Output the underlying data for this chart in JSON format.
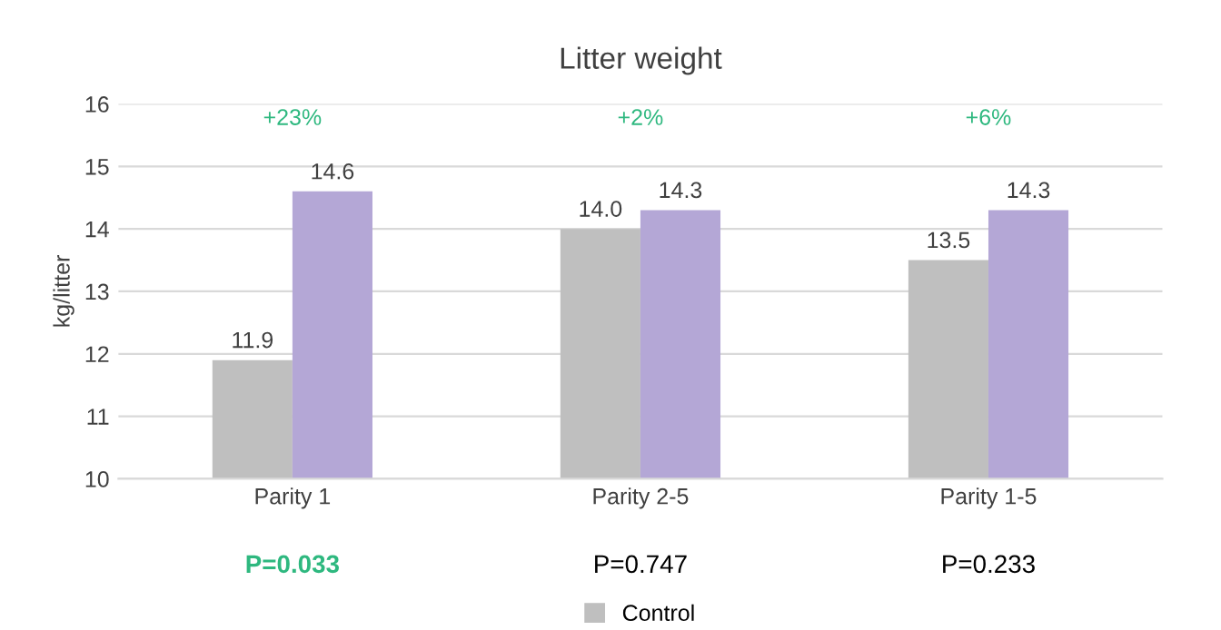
{
  "chart_data": {
    "type": "bar",
    "title": "Litter weight",
    "ylabel": "kg/litter",
    "categories": [
      "Parity 1",
      "Parity 2-5",
      "Parity 1-5"
    ],
    "series": [
      {
        "name": "Control",
        "color": "#bfbfbf",
        "values": [
          11.9,
          14.0,
          13.5
        ],
        "value_labels": [
          "11.9",
          "14.0",
          "13.5"
        ]
      },
      {
        "color": "#b4a7d6",
        "values": [
          14.6,
          14.3,
          14.3
        ],
        "value_labels": [
          "14.6",
          "14.3",
          "14.3"
        ]
      }
    ],
    "ylim": [
      10,
      16
    ],
    "yticks": [
      10,
      11,
      12,
      13,
      14,
      15,
      16
    ],
    "grid": "y",
    "legend": "bottom",
    "annotations": [
      "+23%",
      "+2%",
      "+6%",
      "P=0.033",
      "P=0.747",
      "P=0.233"
    ]
  }
}
